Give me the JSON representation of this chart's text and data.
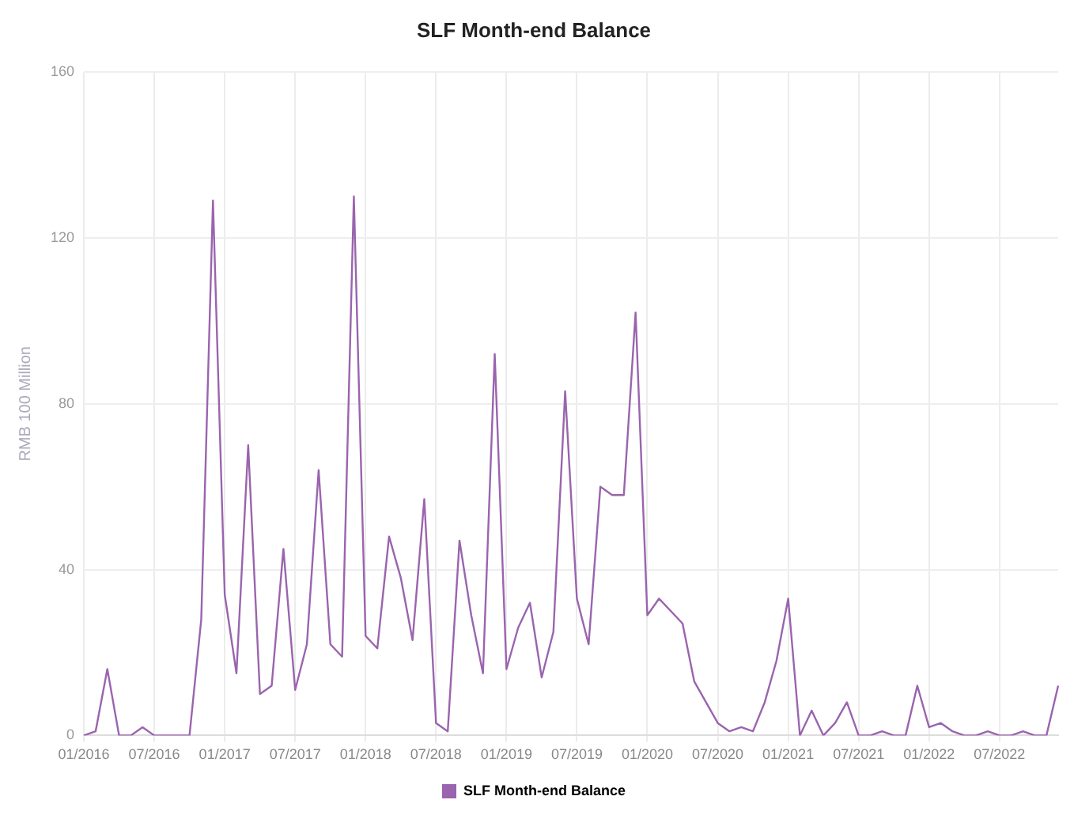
{
  "chart_data": {
    "type": "line",
    "title": "SLF Month-end Balance",
    "ylabel": "RMB 100 Million",
    "categories": [
      "01/2016",
      null,
      null,
      null,
      null,
      null,
      "07/2016",
      null,
      null,
      null,
      null,
      null,
      "01/2017",
      null,
      null,
      null,
      null,
      null,
      "07/2017",
      null,
      null,
      null,
      null,
      null,
      "01/2018",
      null,
      null,
      null,
      null,
      null,
      "07/2018",
      null,
      null,
      null,
      null,
      null,
      "01/2019",
      null,
      null,
      null,
      null,
      null,
      "07/2019",
      null,
      null,
      null,
      null,
      null,
      "01/2020",
      null,
      null,
      null,
      null,
      null,
      "07/2020",
      null,
      null,
      null,
      null,
      null,
      "01/2021",
      null,
      null,
      null,
      null,
      null,
      "07/2021",
      null,
      null,
      null,
      null,
      null,
      "01/2022",
      null,
      null,
      null,
      null,
      null,
      "07/2022",
      null,
      null,
      null,
      null,
      null
    ],
    "series": [
      {
        "name": "SLF Month-end Balance",
        "color": "#9a64ae",
        "values": [
          0,
          1,
          16,
          0,
          0,
          2,
          0,
          0,
          0,
          0,
          28,
          129,
          34,
          15,
          70,
          10,
          12,
          45,
          11,
          22,
          64,
          22,
          19,
          130,
          24,
          21,
          48,
          38,
          23,
          57,
          3,
          1,
          47,
          29,
          15,
          92,
          16,
          26,
          32,
          14,
          25,
          83,
          33,
          22,
          60,
          58,
          58,
          102,
          29,
          33,
          30,
          27,
          13,
          8,
          3,
          1,
          2,
          1,
          8,
          18,
          33,
          0,
          6,
          0,
          3,
          8,
          0,
          0,
          1,
          0,
          0,
          12,
          2,
          3,
          1,
          0,
          0,
          1,
          0,
          0,
          1,
          0,
          0,
          12
        ]
      }
    ],
    "ylim": [
      0,
      160
    ],
    "yticks": [
      0,
      40,
      80,
      120,
      160
    ],
    "grid": true,
    "legend": "bottom",
    "marker": "none",
    "line_style": "solid"
  }
}
